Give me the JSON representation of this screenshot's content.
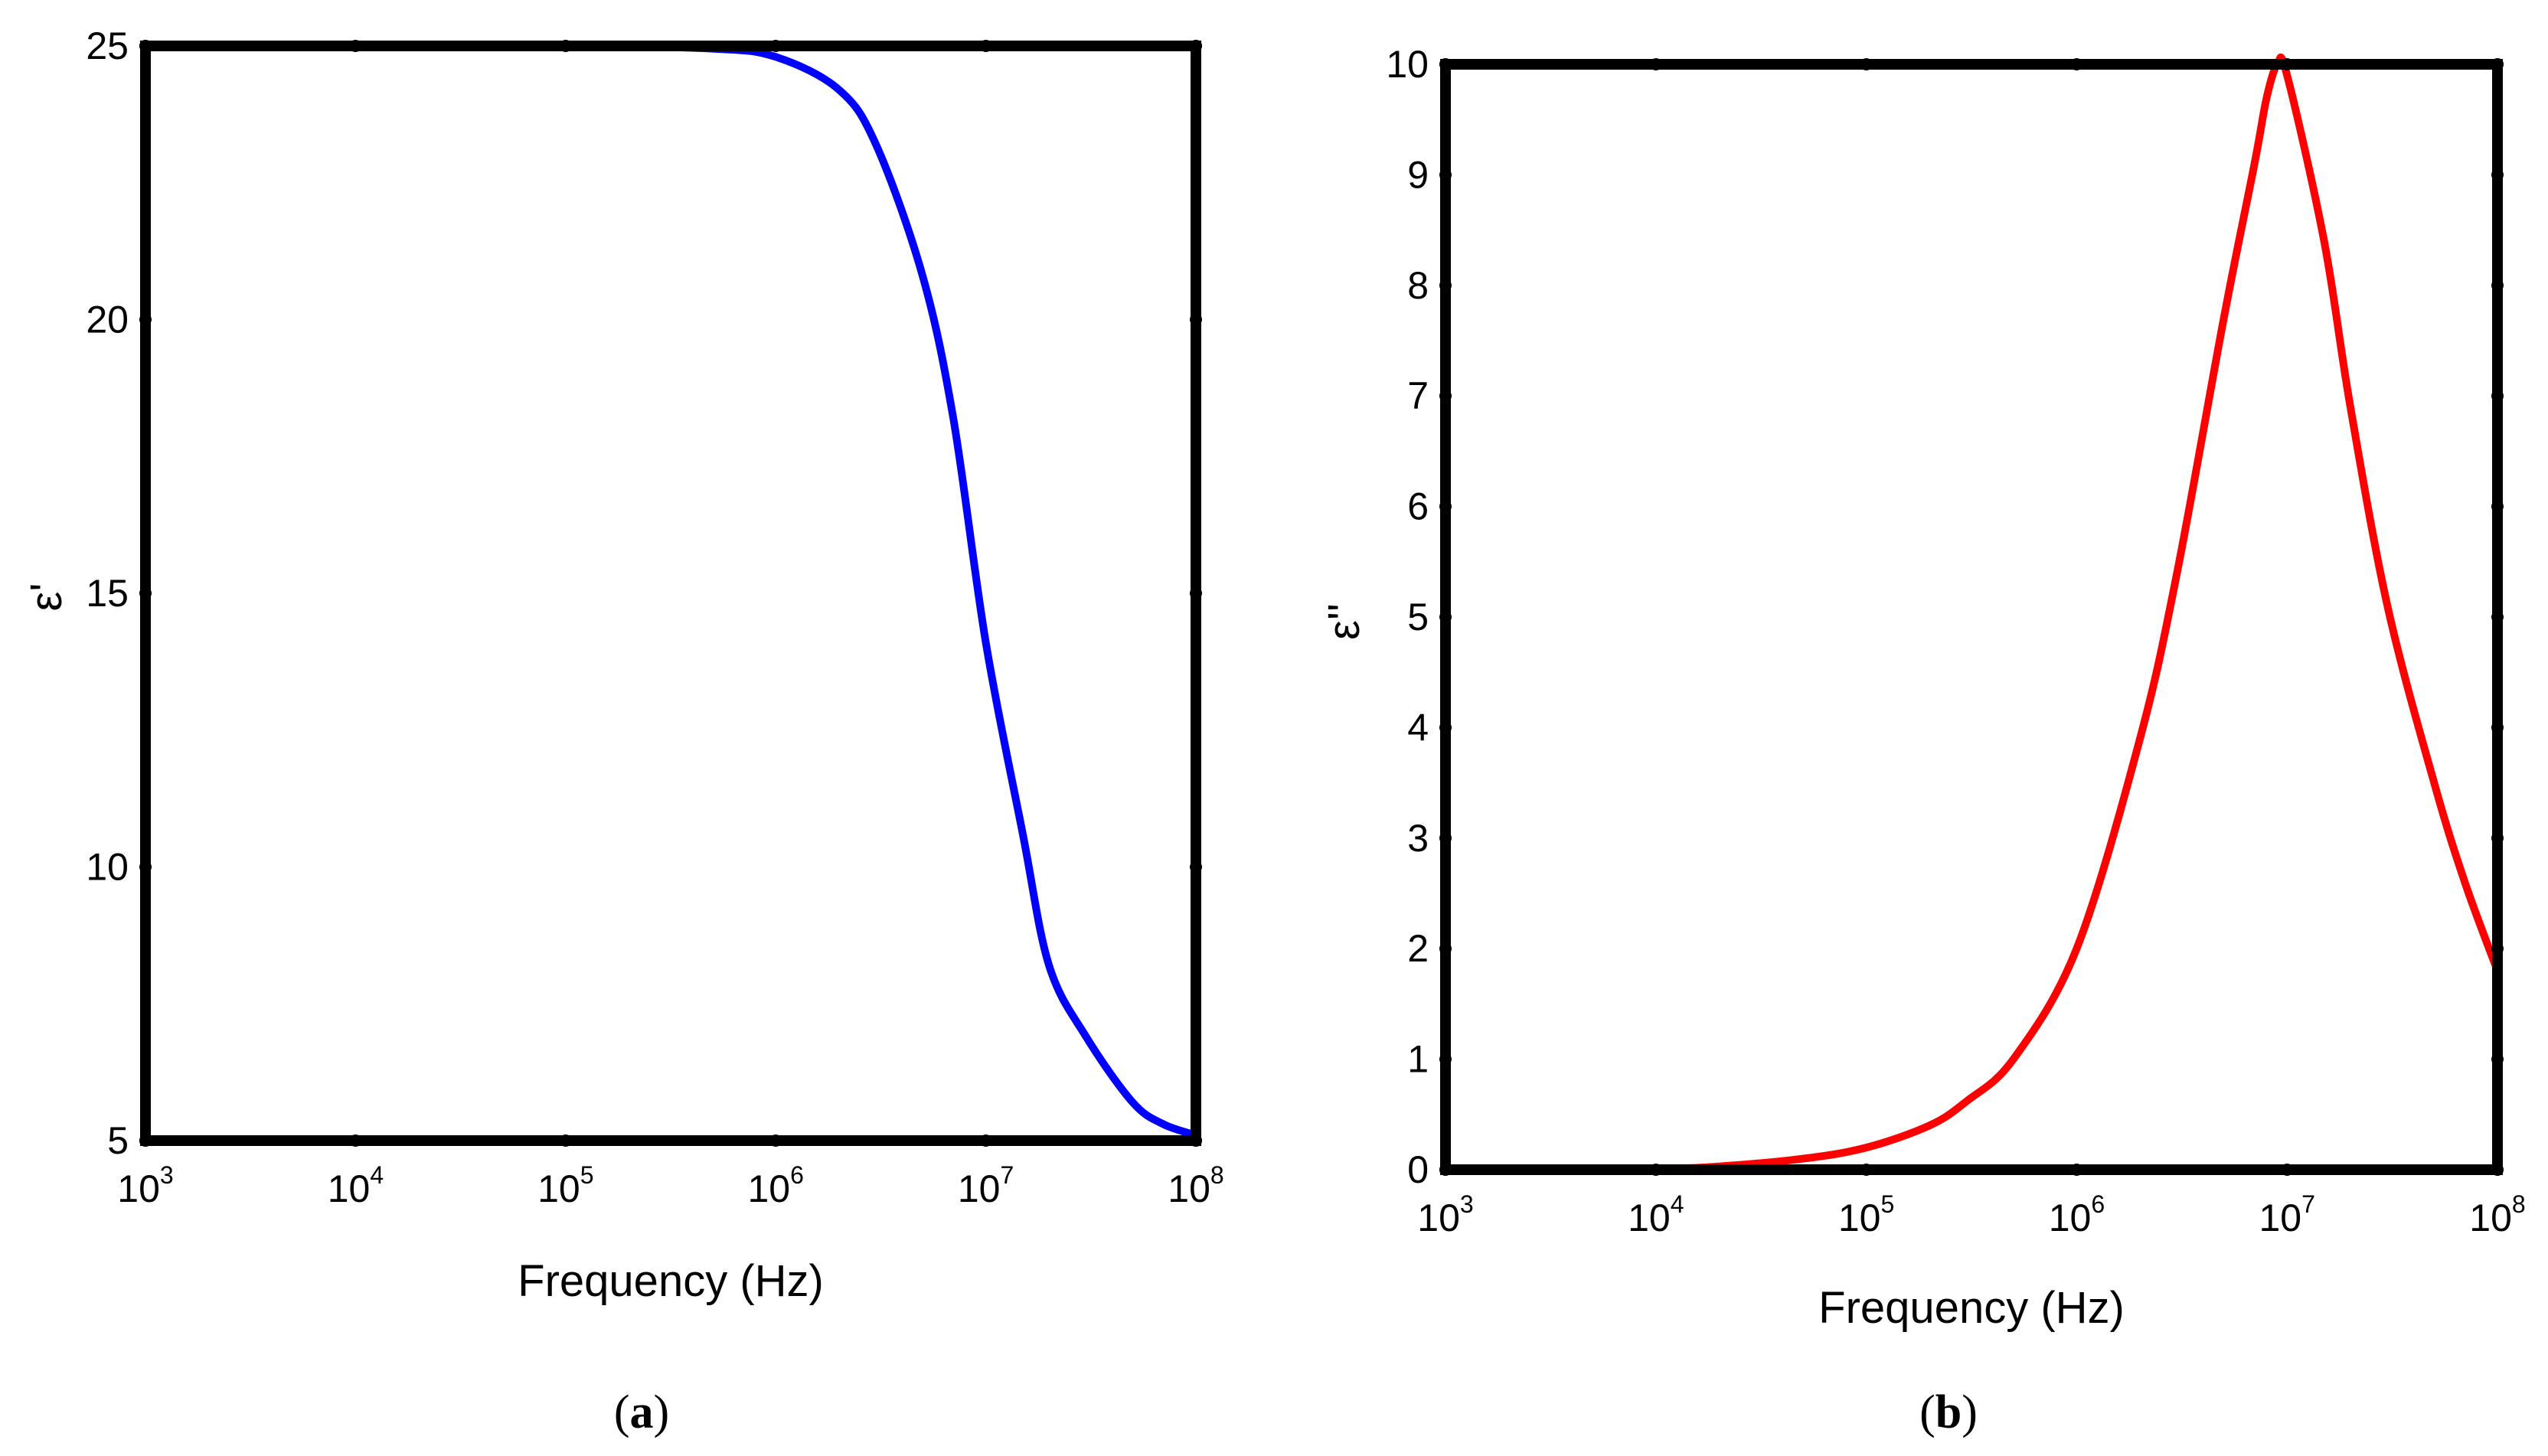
{
  "chart_data": [
    {
      "type": "line",
      "panel_label": "a",
      "xlabel": "Frequency (Hz)",
      "ylabel": "ε'",
      "xscale": "log",
      "xlim": [
        1000,
        100000000
      ],
      "ylim": [
        5,
        25
      ],
      "grid": false,
      "x_ticks": [
        {
          "base": "10",
          "exp": "3",
          "value": 1000
        },
        {
          "base": "10",
          "exp": "4",
          "value": 10000
        },
        {
          "base": "10",
          "exp": "5",
          "value": 100000
        },
        {
          "base": "10",
          "exp": "6",
          "value": 1000000
        },
        {
          "base": "10",
          "exp": "7",
          "value": 10000000
        },
        {
          "base": "10",
          "exp": "8",
          "value": 100000000
        }
      ],
      "y_ticks": [
        "5",
        "10",
        "15",
        "20",
        "25"
      ],
      "series": [
        {
          "color": "#0000ff",
          "x": [
            1000,
            10000,
            100000,
            500000,
            1000000,
            2000000,
            3000000,
            5000000,
            7000000,
            10000000,
            15000000,
            20000000,
            30000000,
            50000000,
            70000000,
            100000000
          ],
          "y": [
            25,
            25,
            25,
            24.95,
            24.8,
            24.2,
            23.2,
            20.8,
            18.2,
            14.1,
            10.6,
            8.2,
            6.9,
            5.7,
            5.3,
            5.1
          ]
        }
      ]
    },
    {
      "type": "line",
      "panel_label": "b",
      "xlabel": "Frequency (Hz)",
      "ylabel": "ε''",
      "xscale": "log",
      "xlim": [
        1000,
        100000000
      ],
      "ylim": [
        0,
        10
      ],
      "grid": false,
      "x_ticks": [
        {
          "base": "10",
          "exp": "3",
          "value": 1000
        },
        {
          "base": "10",
          "exp": "4",
          "value": 10000
        },
        {
          "base": "10",
          "exp": "5",
          "value": 100000
        },
        {
          "base": "10",
          "exp": "6",
          "value": 1000000
        },
        {
          "base": "10",
          "exp": "7",
          "value": 10000000
        },
        {
          "base": "10",
          "exp": "8",
          "value": 100000000
        }
      ],
      "y_ticks": [
        "0",
        "1",
        "2",
        "3",
        "4",
        "5",
        "6",
        "7",
        "8",
        "9",
        "10"
      ],
      "series": [
        {
          "color": "#ff0000",
          "x": [
            1000,
            10000,
            20000,
            50000,
            100000,
            200000,
            300000,
            500000,
            1000000,
            2000000,
            3000000,
            5000000,
            7000000,
            8000000,
            9000000,
            10000000,
            15000000,
            20000000,
            30000000,
            50000000,
            70000000,
            100000000
          ],
          "y": [
            0,
            0.01,
            0.03,
            0.1,
            0.2,
            0.4,
            0.62,
            1.0,
            2.0,
            3.9,
            5.4,
            7.7,
            9.1,
            9.7,
            10.0,
            9.9,
            8.4,
            6.9,
            5.1,
            3.5,
            2.6,
            1.8
          ]
        }
      ]
    }
  ]
}
